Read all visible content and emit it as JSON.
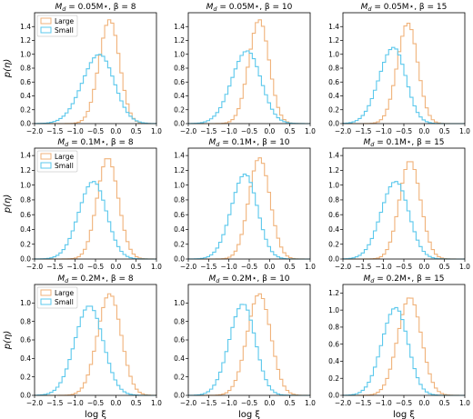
{
  "chart_data": {
    "type": "step-histogram",
    "layout": {
      "rows": 3,
      "cols": 3
    },
    "xlabel": "log ξ",
    "ylabel": "p(η)",
    "xlim": [
      -2.0,
      1.0
    ],
    "xticks": [
      "−2.0",
      "−1.5",
      "−1.0",
      "−0.5",
      "0.0",
      "0.5",
      "1.0"
    ],
    "grid": false,
    "legend": {
      "placement": "top-left",
      "shown_in_panels": [
        0,
        3,
        6
      ]
    },
    "series_defs": [
      {
        "name": "Large",
        "color": "#f0b27a"
      },
      {
        "name": "Small",
        "color": "#5bc8ec"
      }
    ],
    "bins": {
      "start": -2.0,
      "end": 1.0,
      "width": 0.075
    },
    "panels": [
      {
        "title": "M_d = 0.05M⋆, β = 8",
        "ylim": [
          0,
          1.6
        ],
        "yticks": [
          "0.0",
          "0.2",
          "0.4",
          "0.6",
          "0.8",
          "1.0",
          "1.2",
          "1.4"
        ],
        "series": [
          {
            "name": "Large",
            "peak_x": -0.15,
            "peak_y": 1.5,
            "sigma_left": 0.26,
            "sigma_right": 0.24
          },
          {
            "name": "Small",
            "peak_x": -0.4,
            "peak_y": 1.0,
            "sigma_left": 0.42,
            "sigma_right": 0.36
          }
        ]
      },
      {
        "title": "M_d = 0.05M⋆, β = 10",
        "ylim": [
          0,
          1.6
        ],
        "yticks": [
          "0.0",
          "0.2",
          "0.4",
          "0.6",
          "0.8",
          "1.0",
          "1.2",
          "1.4"
        ],
        "series": [
          {
            "name": "Large",
            "peak_x": -0.25,
            "peak_y": 1.5,
            "sigma_left": 0.26,
            "sigma_right": 0.24
          },
          {
            "name": "Small",
            "peak_x": -0.55,
            "peak_y": 1.05,
            "sigma_left": 0.38,
            "sigma_right": 0.34
          }
        ]
      },
      {
        "title": "M_d = 0.05M⋆, β = 15",
        "ylim": [
          0,
          1.6
        ],
        "yticks": [
          "0.0",
          "0.2",
          "0.4",
          "0.6",
          "0.8",
          "1.0",
          "1.2",
          "1.4"
        ],
        "series": [
          {
            "name": "Large",
            "peak_x": -0.4,
            "peak_y": 1.45,
            "sigma_left": 0.26,
            "sigma_right": 0.24
          },
          {
            "name": "Small",
            "peak_x": -0.75,
            "peak_y": 1.1,
            "sigma_left": 0.36,
            "sigma_right": 0.3
          }
        ]
      },
      {
        "title": "M_d = 0.1M⋆, β = 8",
        "ylim": [
          0,
          1.5
        ],
        "yticks": [
          "0.0",
          "0.2",
          "0.4",
          "0.6",
          "0.8",
          "1.0",
          "1.2",
          "1.4"
        ],
        "series": [
          {
            "name": "Large",
            "peak_x": -0.2,
            "peak_y": 1.37,
            "sigma_left": 0.26,
            "sigma_right": 0.26
          },
          {
            "name": "Small",
            "peak_x": -0.55,
            "peak_y": 1.05,
            "sigma_left": 0.36,
            "sigma_right": 0.32
          }
        ]
      },
      {
        "title": "M_d = 0.1M⋆, β = 10",
        "ylim": [
          0,
          1.5
        ],
        "yticks": [
          "0.0",
          "0.2",
          "0.4",
          "0.6",
          "0.8",
          "1.0",
          "1.2",
          "1.4"
        ],
        "series": [
          {
            "name": "Large",
            "peak_x": -0.25,
            "peak_y": 1.37,
            "sigma_left": 0.26,
            "sigma_right": 0.26
          },
          {
            "name": "Small",
            "peak_x": -0.6,
            "peak_y": 1.15,
            "sigma_left": 0.34,
            "sigma_right": 0.3
          }
        ]
      },
      {
        "title": "M_d = 0.1M⋆, β = 15",
        "ylim": [
          0,
          1.5
        ],
        "yticks": [
          "0.0",
          "0.2",
          "0.4",
          "0.6",
          "0.8",
          "1.0",
          "1.2",
          "1.4"
        ],
        "series": [
          {
            "name": "Large",
            "peak_x": -0.35,
            "peak_y": 1.33,
            "sigma_left": 0.26,
            "sigma_right": 0.26
          },
          {
            "name": "Small",
            "peak_x": -0.7,
            "peak_y": 1.05,
            "sigma_left": 0.36,
            "sigma_right": 0.32
          }
        ]
      },
      {
        "title": "M_d = 0.2M⋆, β = 8",
        "ylim": [
          0,
          1.2
        ],
        "yticks": [
          "0.0",
          "0.2",
          "0.4",
          "0.6",
          "0.8",
          "1.0"
        ],
        "series": [
          {
            "name": "Large",
            "peak_x": -0.15,
            "peak_y": 1.1,
            "sigma_left": 0.3,
            "sigma_right": 0.28
          },
          {
            "name": "Small",
            "peak_x": -0.65,
            "peak_y": 0.97,
            "sigma_left": 0.36,
            "sigma_right": 0.34
          }
        ]
      },
      {
        "title": "M_d = 0.2M⋆, β = 10",
        "ylim": [
          0,
          1.2
        ],
        "yticks": [
          "0.0",
          "0.2",
          "0.4",
          "0.6",
          "0.8",
          "1.0"
        ],
        "series": [
          {
            "name": "Large",
            "peak_x": -0.25,
            "peak_y": 1.1,
            "sigma_left": 0.3,
            "sigma_right": 0.28
          },
          {
            "name": "Small",
            "peak_x": -0.65,
            "peak_y": 0.99,
            "sigma_left": 0.34,
            "sigma_right": 0.3
          }
        ]
      },
      {
        "title": "M_d = 0.2M⋆, β = 15",
        "ylim": [
          0,
          1.3
        ],
        "yticks": [
          "0.0",
          "0.2",
          "0.4",
          "0.6",
          "0.8",
          "1.0",
          "1.2"
        ],
        "series": [
          {
            "name": "Large",
            "peak_x": -0.35,
            "peak_y": 1.15,
            "sigma_left": 0.3,
            "sigma_right": 0.28
          },
          {
            "name": "Small",
            "peak_x": -0.7,
            "peak_y": 1.03,
            "sigma_left": 0.34,
            "sigma_right": 0.3
          }
        ]
      }
    ]
  }
}
